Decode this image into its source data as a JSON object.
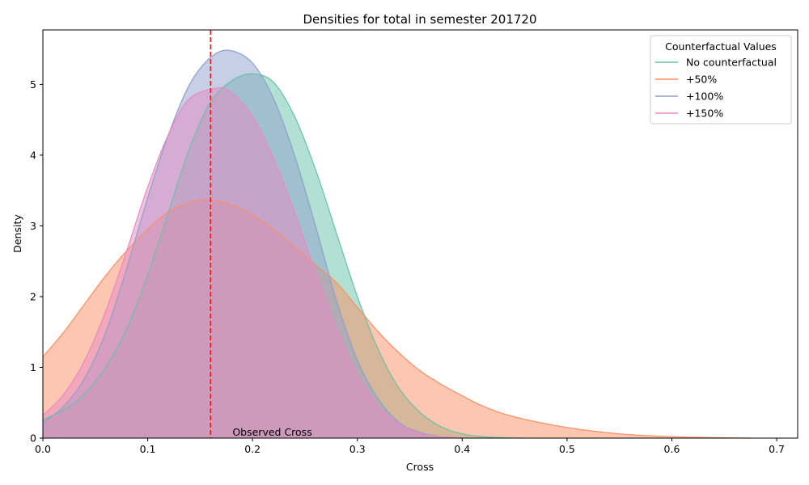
{
  "chart_data": {
    "type": "area",
    "title": "Densities for total in semester 201720",
    "xlabel": "Cross",
    "ylabel": "Density",
    "xlim": [
      0,
      0.72
    ],
    "ylim": [
      0,
      5.77
    ],
    "xticks": [
      "0.0",
      "0.1",
      "0.2",
      "0.3",
      "0.4",
      "0.5",
      "0.6",
      "0.7"
    ],
    "yticks": [
      "0",
      "1",
      "2",
      "3",
      "4",
      "5"
    ],
    "grid": false,
    "legend": {
      "title": "Counterfactual Values",
      "placement": "top-right"
    },
    "series": [
      {
        "name": "No counterfactual",
        "color": "#66c2a5",
        "x": [
          0,
          0.02,
          0.04,
          0.06,
          0.08,
          0.1,
          0.12,
          0.14,
          0.16,
          0.18,
          0.2,
          0.22,
          0.24,
          0.26,
          0.28,
          0.3,
          0.32,
          0.34,
          0.36,
          0.38,
          0.4,
          0.42,
          0.44,
          0.46
        ],
        "values": [
          0.26,
          0.4,
          0.63,
          1.0,
          1.55,
          2.3,
          3.2,
          4.1,
          4.75,
          5.05,
          5.15,
          5.03,
          4.55,
          3.8,
          2.9,
          2.0,
          1.25,
          0.7,
          0.36,
          0.16,
          0.06,
          0.02,
          0.005,
          0
        ]
      },
      {
        "name": "+50%",
        "color": "#fc8d62",
        "x": [
          0,
          0.02,
          0.04,
          0.06,
          0.08,
          0.1,
          0.12,
          0.14,
          0.155,
          0.18,
          0.2,
          0.22,
          0.24,
          0.26,
          0.28,
          0.3,
          0.32,
          0.34,
          0.36,
          0.38,
          0.4,
          0.42,
          0.45,
          0.5,
          0.55,
          0.6,
          0.65,
          0.675
        ],
        "values": [
          1.15,
          1.5,
          1.9,
          2.3,
          2.65,
          2.95,
          3.2,
          3.33,
          3.37,
          3.3,
          3.15,
          2.95,
          2.7,
          2.45,
          2.2,
          1.85,
          1.5,
          1.2,
          0.95,
          0.76,
          0.6,
          0.45,
          0.3,
          0.15,
          0.06,
          0.02,
          0.005,
          0
        ]
      },
      {
        "name": "+100%",
        "color": "#8da0cb",
        "x": [
          0,
          0.02,
          0.04,
          0.06,
          0.08,
          0.1,
          0.12,
          0.14,
          0.16,
          0.178,
          0.2,
          0.22,
          0.24,
          0.26,
          0.28,
          0.3,
          0.32,
          0.34,
          0.36,
          0.38,
          0.4
        ],
        "values": [
          0.22,
          0.45,
          0.85,
          1.5,
          2.4,
          3.4,
          4.3,
          5.0,
          5.38,
          5.48,
          5.3,
          4.8,
          4.0,
          3.0,
          1.95,
          1.1,
          0.55,
          0.22,
          0.08,
          0.02,
          0
        ]
      },
      {
        "name": "+150%",
        "color": "#e78ac3",
        "x": [
          0,
          0.02,
          0.04,
          0.06,
          0.08,
          0.1,
          0.12,
          0.14,
          0.167,
          0.18,
          0.2,
          0.22,
          0.24,
          0.26,
          0.28,
          0.3,
          0.32,
          0.34,
          0.36,
          0.38,
          0.4
        ],
        "values": [
          0.32,
          0.62,
          1.1,
          1.8,
          2.65,
          3.55,
          4.3,
          4.8,
          4.95,
          4.88,
          4.55,
          3.95,
          3.2,
          2.35,
          1.55,
          0.9,
          0.45,
          0.2,
          0.07,
          0.02,
          0
        ]
      }
    ],
    "reference_line": {
      "x": 0.16,
      "label": "Observed Cross",
      "color": "#e41a1c"
    }
  }
}
